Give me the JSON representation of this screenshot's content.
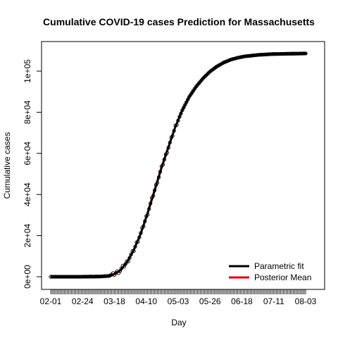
{
  "chart_data": {
    "type": "line",
    "title": "Cumulative COVID-19 cases Prediction for Massachusetts",
    "xlabel": "Day",
    "ylabel": "Cumulative cases",
    "x_tick_labels": [
      "02-01",
      "02-24",
      "03-18",
      "04-10",
      "05-03",
      "05-26",
      "06-18",
      "07-11",
      "08-03"
    ],
    "x_tick_days": [
      0,
      23,
      46,
      69,
      92,
      115,
      138,
      161,
      184
    ],
    "xlim": [
      0,
      184
    ],
    "y_ticks": [
      0,
      20000,
      40000,
      60000,
      80000,
      100000
    ],
    "y_tick_labels": [
      "0e+00",
      "2e+04",
      "4e+04",
      "6e+04",
      "8e+04",
      "1e+05"
    ],
    "ylim": [
      -4000,
      112000
    ],
    "grid": false,
    "legend_position": "bottom-right",
    "series": [
      {
        "name": "Parametric fit",
        "color": "#000000",
        "points": [
          [
            0,
            0
          ],
          [
            20,
            0
          ],
          [
            35,
            100
          ],
          [
            42,
            400
          ],
          [
            45,
            1000
          ],
          [
            50,
            3000
          ],
          [
            55,
            7000
          ],
          [
            60,
            13000
          ],
          [
            65,
            21000
          ],
          [
            70,
            31000
          ],
          [
            75,
            42000
          ],
          [
            80,
            53000
          ],
          [
            85,
            63000
          ],
          [
            90,
            73000
          ],
          [
            95,
            81000
          ],
          [
            100,
            87500
          ],
          [
            105,
            92500
          ],
          [
            110,
            96500
          ],
          [
            115,
            99800
          ],
          [
            120,
            102300
          ],
          [
            125,
            104200
          ],
          [
            130,
            105600
          ],
          [
            135,
            106500
          ],
          [
            140,
            107200
          ],
          [
            150,
            107900
          ],
          [
            160,
            108300
          ],
          [
            175,
            108500
          ],
          [
            185,
            108600
          ]
        ]
      },
      {
        "name": "Posterior Mean",
        "color": "#e00000",
        "points": [
          [
            44,
            500
          ],
          [
            48,
            1800
          ],
          [
            52,
            4500
          ],
          [
            56,
            8500
          ],
          [
            60,
            13000
          ],
          [
            64,
            19500
          ],
          [
            68,
            27000
          ],
          [
            72,
            36000
          ],
          [
            76,
            44500
          ],
          [
            80,
            53500
          ],
          [
            84,
            61500
          ],
          [
            88,
            69000
          ]
        ]
      }
    ]
  }
}
